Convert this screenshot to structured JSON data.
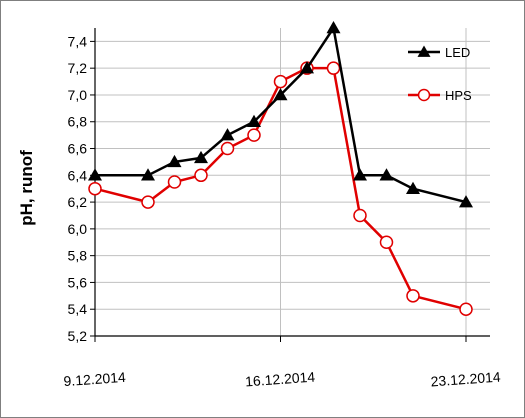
{
  "chart_data": {
    "type": "line",
    "title": "",
    "xlabel": "",
    "ylabel": "pH, runof",
    "ylim": [
      5.2,
      7.5
    ],
    "yticks": [
      5.2,
      5.4,
      5.6,
      5.8,
      6.0,
      6.2,
      6.4,
      6.6,
      6.8,
      7.0,
      7.2,
      7.4
    ],
    "ytick_labels": [
      "5,2",
      "5,4",
      "5,6",
      "5,8",
      "6,0",
      "6,2",
      "6,4",
      "6,6",
      "6,8",
      "7,0",
      "7,2",
      "7,4"
    ],
    "xlim": [
      "9.12.2014",
      "23.12.2014"
    ],
    "xticks": [
      "9.12.2014",
      "16.12.2014",
      "23.12.2014"
    ],
    "grid": true,
    "legend_position": "top-right",
    "series": [
      {
        "name": "LED",
        "color": "#000000",
        "marker": "filled-triangle",
        "x": [
          "9.12.2014",
          "11.12.2014",
          "12.12.2014",
          "13.12.2014",
          "14.12.2014",
          "15.12.2014",
          "16.12.2014",
          "17.12.2014",
          "18.12.2014",
          "19.12.2014",
          "20.12.2014",
          "21.12.2014",
          "23.12.2014"
        ],
        "values": [
          6.4,
          6.4,
          6.5,
          6.53,
          6.7,
          6.8,
          7.0,
          7.2,
          7.5,
          6.4,
          6.4,
          6.3,
          6.2
        ]
      },
      {
        "name": "HPS",
        "color": "#e00000",
        "marker": "open-circle",
        "x": [
          "9.12.2014",
          "11.12.2014",
          "12.12.2014",
          "13.12.2014",
          "14.12.2014",
          "15.12.2014",
          "16.12.2014",
          "17.12.2014",
          "18.12.2014",
          "19.12.2014",
          "20.12.2014",
          "21.12.2014",
          "23.12.2014"
        ],
        "values": [
          6.3,
          6.2,
          6.35,
          6.4,
          6.6,
          6.7,
          7.1,
          7.2,
          7.2,
          6.1,
          5.9,
          5.5,
          5.4
        ]
      }
    ]
  }
}
